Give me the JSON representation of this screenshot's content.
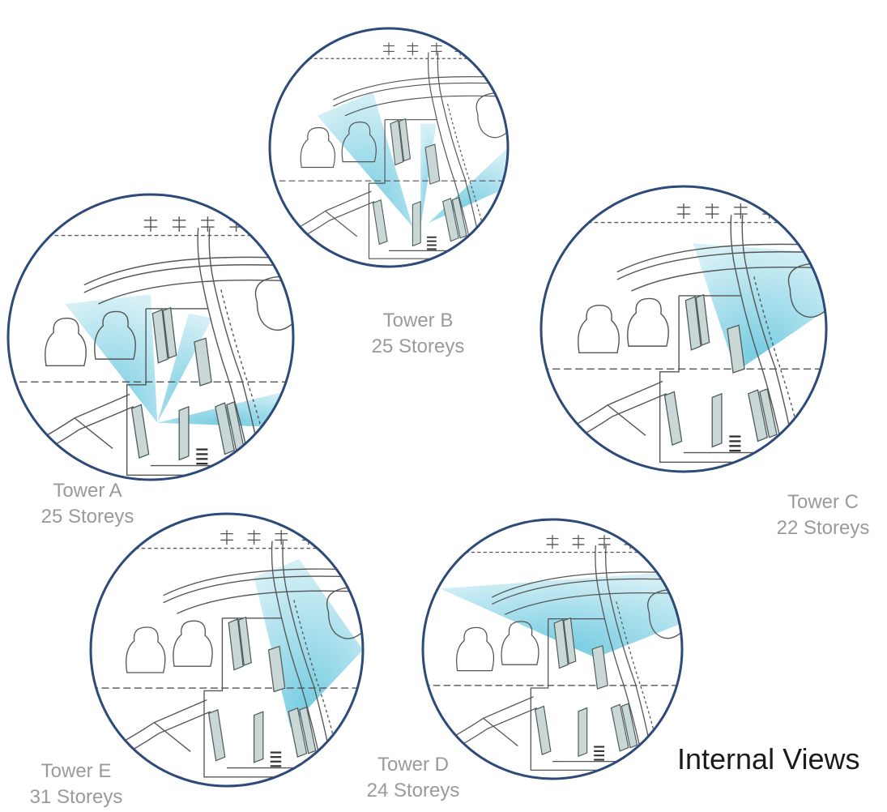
{
  "title": "Internal Views",
  "views": [
    {
      "id": "a",
      "tower": "Tower A",
      "storeys": "25 Storeys"
    },
    {
      "id": "b",
      "tower": "Tower B",
      "storeys": "25 Storeys"
    },
    {
      "id": "c",
      "tower": "Tower C",
      "storeys": "22 Storeys"
    },
    {
      "id": "d",
      "tower": "Tower D",
      "storeys": "24 Storeys"
    },
    {
      "id": "e",
      "tower": "Tower E",
      "storeys": "31 Storeys"
    }
  ],
  "colors": {
    "ring": "#2e4a78",
    "view_cone": "#5cc3dc",
    "building": "#c9d7d6",
    "linework": "#555555"
  }
}
